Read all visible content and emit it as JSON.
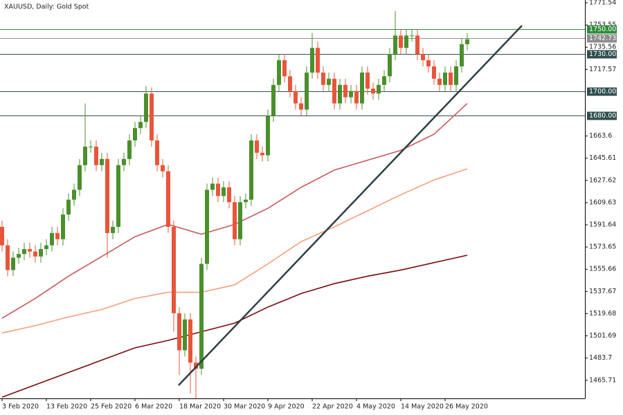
{
  "chart_data": {
    "type": "candlestick",
    "title": "XAUUSD, Daily:  Gold Spot",
    "categories": [
      "3 Feb 2020",
      null,
      null,
      null,
      null,
      null,
      null,
      null,
      "13 Feb 2020",
      null,
      null,
      null,
      null,
      null,
      null,
      null,
      "25 Feb 2020",
      null,
      null,
      null,
      null,
      null,
      null,
      null,
      "6 Mar 2020",
      null,
      null,
      null,
      null,
      null,
      null,
      null,
      "18 Mar 2020",
      null,
      null,
      null,
      null,
      null,
      null,
      null,
      "30 Mar 2020",
      null,
      null,
      null,
      null,
      null,
      null,
      null,
      "9 Apr 2020",
      null,
      null,
      null,
      null,
      null,
      null,
      null,
      "22 Apr 2020",
      null,
      null,
      null,
      null,
      null,
      null,
      null,
      "4 May 2020",
      null,
      null,
      null,
      null,
      null,
      null,
      null,
      "14 May 2020",
      null,
      null,
      null,
      null,
      null,
      null,
      null,
      "26 May 2020",
      null,
      null,
      null,
      null
    ],
    "open": [
      1590,
      1575,
      1555,
      1565,
      1568,
      1572,
      1570,
      1566,
      1572,
      1575,
      1585,
      1580,
      1600,
      1612,
      1620,
      1640,
      1655,
      1655,
      1640,
      1645,
      1585,
      1590,
      1640,
      1645,
      1660,
      1670,
      1675,
      1698,
      1660,
      1640,
      1635,
      1590,
      1520,
      1490,
      1515,
      1480,
      1475,
      1560,
      1620,
      1625,
      1615,
      1622,
      1610,
      1580,
      1610,
      1612,
      1660,
      1650,
      1648,
      1680,
      1705,
      1725,
      1712,
      1700,
      1690,
      1685,
      1715,
      1735,
      1715,
      1705,
      1710,
      1690,
      1705,
      1695,
      1700,
      1690,
      1715,
      1702,
      1698,
      1705,
      1712,
      1730,
      1745,
      1735,
      1745,
      1745,
      1730,
      1725,
      1720,
      1710,
      1705,
      1715,
      1705,
      1720,
      1738
    ],
    "high": [
      1595,
      1580,
      1570,
      1573,
      1577,
      1577,
      1575,
      1577,
      1580,
      1590,
      1590,
      1605,
      1617,
      1625,
      1645,
      1690,
      1660,
      1660,
      1650,
      1650,
      1595,
      1645,
      1650,
      1665,
      1675,
      1680,
      1704,
      1703,
      1665,
      1645,
      1640,
      1595,
      1525,
      1520,
      1520,
      1485,
      1565,
      1625,
      1630,
      1630,
      1627,
      1627,
      1615,
      1615,
      1617,
      1665,
      1665,
      1655,
      1685,
      1710,
      1730,
      1730,
      1717,
      1705,
      1695,
      1720,
      1747,
      1740,
      1720,
      1715,
      1715,
      1710,
      1710,
      1705,
      1705,
      1720,
      1720,
      1707,
      1710,
      1717,
      1735,
      1765,
      1750,
      1750,
      1750,
      1750,
      1735,
      1730,
      1725,
      1715,
      1720,
      1720,
      1725,
      1743,
      1747
    ],
    "low": [
      1570,
      1550,
      1550,
      1560,
      1563,
      1565,
      1561,
      1561,
      1567,
      1570,
      1575,
      1575,
      1595,
      1607,
      1615,
      1635,
      1650,
      1635,
      1635,
      1565,
      1580,
      1585,
      1635,
      1640,
      1655,
      1665,
      1670,
      1655,
      1635,
      1630,
      1585,
      1505,
      1470,
      1485,
      1455,
      1451,
      1470,
      1555,
      1615,
      1610,
      1610,
      1605,
      1575,
      1575,
      1605,
      1607,
      1645,
      1643,
      1643,
      1675,
      1700,
      1707,
      1695,
      1685,
      1680,
      1680,
      1710,
      1710,
      1700,
      1700,
      1685,
      1685,
      1690,
      1690,
      1685,
      1685,
      1697,
      1693,
      1693,
      1700,
      1707,
      1725,
      1730,
      1730,
      1740,
      1725,
      1720,
      1715,
      1705,
      1700,
      1700,
      1700,
      1700,
      1715,
      1733
    ],
    "close": [
      1575,
      1555,
      1565,
      1568,
      1572,
      1570,
      1566,
      1572,
      1575,
      1585,
      1580,
      1600,
      1612,
      1620,
      1640,
      1655,
      1655,
      1640,
      1645,
      1585,
      1590,
      1640,
      1645,
      1660,
      1670,
      1675,
      1698,
      1660,
      1640,
      1635,
      1590,
      1520,
      1490,
      1515,
      1480,
      1475,
      1560,
      1620,
      1625,
      1615,
      1622,
      1610,
      1580,
      1610,
      1612,
      1660,
      1650,
      1648,
      1680,
      1705,
      1725,
      1712,
      1700,
      1690,
      1685,
      1715,
      1735,
      1715,
      1705,
      1710,
      1690,
      1705,
      1695,
      1700,
      1690,
      1715,
      1702,
      1698,
      1705,
      1712,
      1730,
      1745,
      1735,
      1745,
      1745,
      1730,
      1725,
      1720,
      1710,
      1705,
      1715,
      1705,
      1720,
      1738,
      1742
    ],
    "up_color": "#4a8f2c",
    "down_color": "#e8553a",
    "moving_averages": [
      {
        "color": "#c8585a",
        "x": [
          0,
          6,
          12,
          18,
          24,
          30,
          36,
          42,
          48,
          54,
          60,
          66,
          72,
          78,
          84
        ],
        "values": [
          1516,
          1532,
          1550,
          1566,
          1582,
          1592,
          1584,
          1592,
          1605,
          1622,
          1636,
          1644,
          1652,
          1665,
          1690
        ]
      },
      {
        "color": "#f5a07a",
        "x": [
          0,
          6,
          12,
          18,
          24,
          30,
          36,
          42,
          48,
          54,
          60,
          66,
          72,
          78,
          84
        ],
        "values": [
          1504,
          1510,
          1517,
          1523,
          1532,
          1537,
          1537,
          1543,
          1560,
          1578,
          1590,
          1603,
          1616,
          1628,
          1637
        ]
      },
      {
        "color": "#7a0a0a",
        "x": [
          0,
          6,
          12,
          18,
          24,
          30,
          36,
          42,
          48,
          54,
          60,
          66,
          72,
          78,
          84
        ],
        "values": [
          1452,
          1462,
          1472,
          1482,
          1492,
          1498,
          1505,
          1512,
          1525,
          1536,
          1544,
          1550,
          1555,
          1561,
          1567
        ]
      }
    ],
    "levels": [
      {
        "value": 1750,
        "label": "1750.00",
        "color": "#2e8b3a"
      },
      {
        "value": 1742.73,
        "label": "1742.73",
        "color": "#8c8c8c"
      },
      {
        "value": 1730,
        "label": "1730.00",
        "color": "#2f4f4f"
      },
      {
        "value": 1700,
        "label": "1700.00",
        "color": "#2f4f4f"
      },
      {
        "value": 1680,
        "label": "1680.00",
        "color": "#2f4f4f"
      }
    ],
    "ylim": [
      1451,
      1773.8
    ],
    "yticks": [
      1771.54,
      1753.55,
      1735.56,
      1717.57,
      1663.6,
      1645.61,
      1627.62,
      1609.63,
      1591.64,
      1573.65,
      1555.66,
      1537.67,
      1519.68,
      1501.69,
      1483.7,
      1465.71
    ]
  }
}
